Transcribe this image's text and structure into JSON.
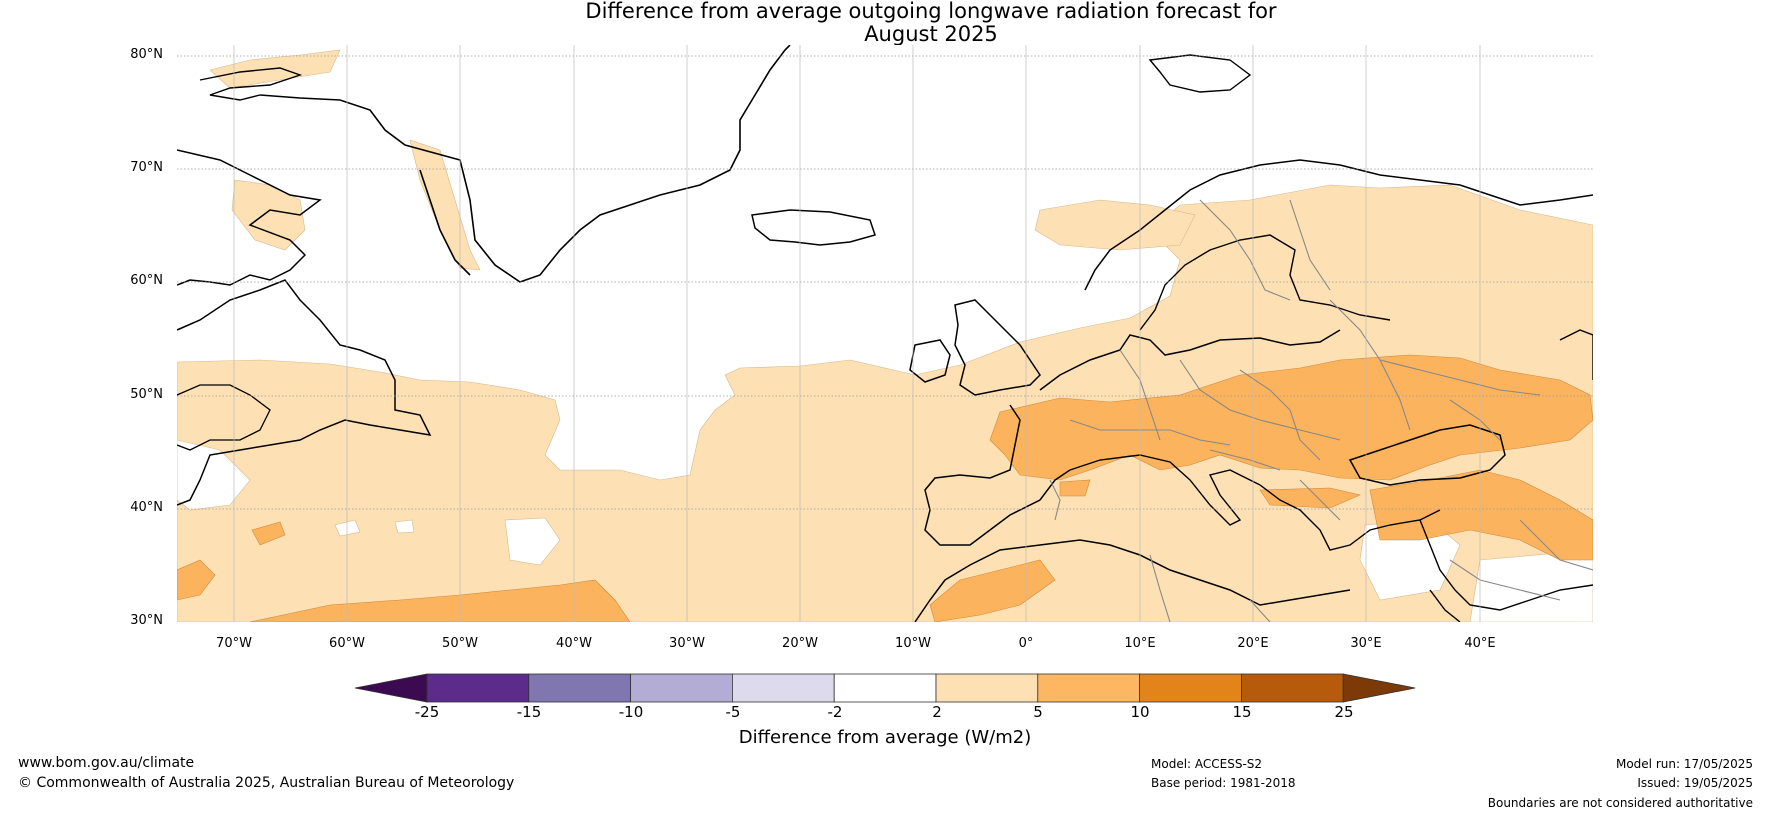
{
  "title": {
    "line1": "Difference from average outgoing longwave radiation forecast for",
    "line2": "August 2025"
  },
  "map": {
    "lat_labels": [
      "80°N",
      "70°N",
      "60°N",
      "50°N",
      "40°N",
      "30°N"
    ],
    "lon_labels": [
      "70°W",
      "60°W",
      "50°W",
      "40°W",
      "30°W",
      "20°W",
      "10°W",
      "0°",
      "10°E",
      "20°E",
      "30°E",
      "40°E"
    ],
    "extent": {
      "lon_min": -75,
      "lon_max": 50,
      "lat_min": 30,
      "lat_max": 81
    },
    "colors": {
      "ocean_land_neutral": "#ffffff",
      "light_orange": "#fde0b4",
      "mid_orange": "#fcb35e",
      "coastline": "#000000",
      "border": "#888888"
    }
  },
  "colorbar": {
    "title": "Difference from average (W/m2)",
    "ticks": [
      "-25",
      "-15",
      "-10",
      "-5",
      "-2",
      "2",
      "5",
      "10",
      "15",
      "25"
    ],
    "segments": [
      {
        "range": "< -25",
        "color": "#3c0a50"
      },
      {
        "range": "-25 to -15",
        "color": "#5b2c8a"
      },
      {
        "range": "-15 to -10",
        "color": "#8177b0"
      },
      {
        "range": "-10 to -5",
        "color": "#b3acd4"
      },
      {
        "range": "-5 to -2",
        "color": "#dcdaec"
      },
      {
        "range": "-2 to 2",
        "color": "#ffffff"
      },
      {
        "range": "2 to 5",
        "color": "#fde0b4"
      },
      {
        "range": "5 to 10",
        "color": "#fdb762"
      },
      {
        "range": "10 to 15",
        "color": "#e28419"
      },
      {
        "range": "15 to 25",
        "color": "#b65a0c"
      },
      {
        "range": "> 25",
        "color": "#7b3a08"
      }
    ]
  },
  "footer": {
    "website": "www.bom.gov.au/climate",
    "copyright": "© Commonwealth of Australia 2025, Australian Bureau of Meteorology",
    "model": "Model: ACCESS-S2",
    "base_period": "Base period: 1981-2018",
    "model_run": "Model run: 17/05/2025",
    "issued": "Issued: 19/05/2025",
    "disclaimer": "Boundaries are not considered authoritative"
  }
}
